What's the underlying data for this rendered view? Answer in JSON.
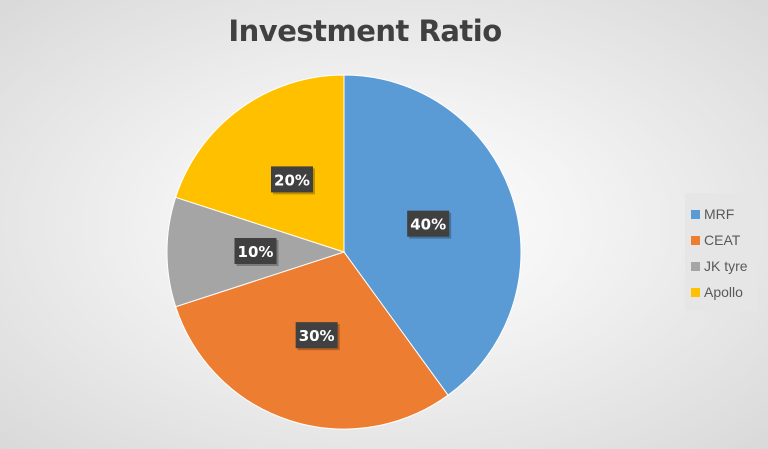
{
  "chart_data": {
    "type": "pie",
    "title": "Investment Ratio",
    "categories": [
      "MRF",
      "CEAT",
      "JK tyre",
      "Apollo"
    ],
    "values": [
      40,
      30,
      10,
      20
    ],
    "data_labels": [
      "40%",
      "30%",
      "10%",
      "20%"
    ],
    "colors": [
      "#5b9bd5",
      "#ed7d31",
      "#a5a5a5",
      "#ffc000"
    ],
    "start_angle": "top, clockwise",
    "legend_position": "right"
  }
}
